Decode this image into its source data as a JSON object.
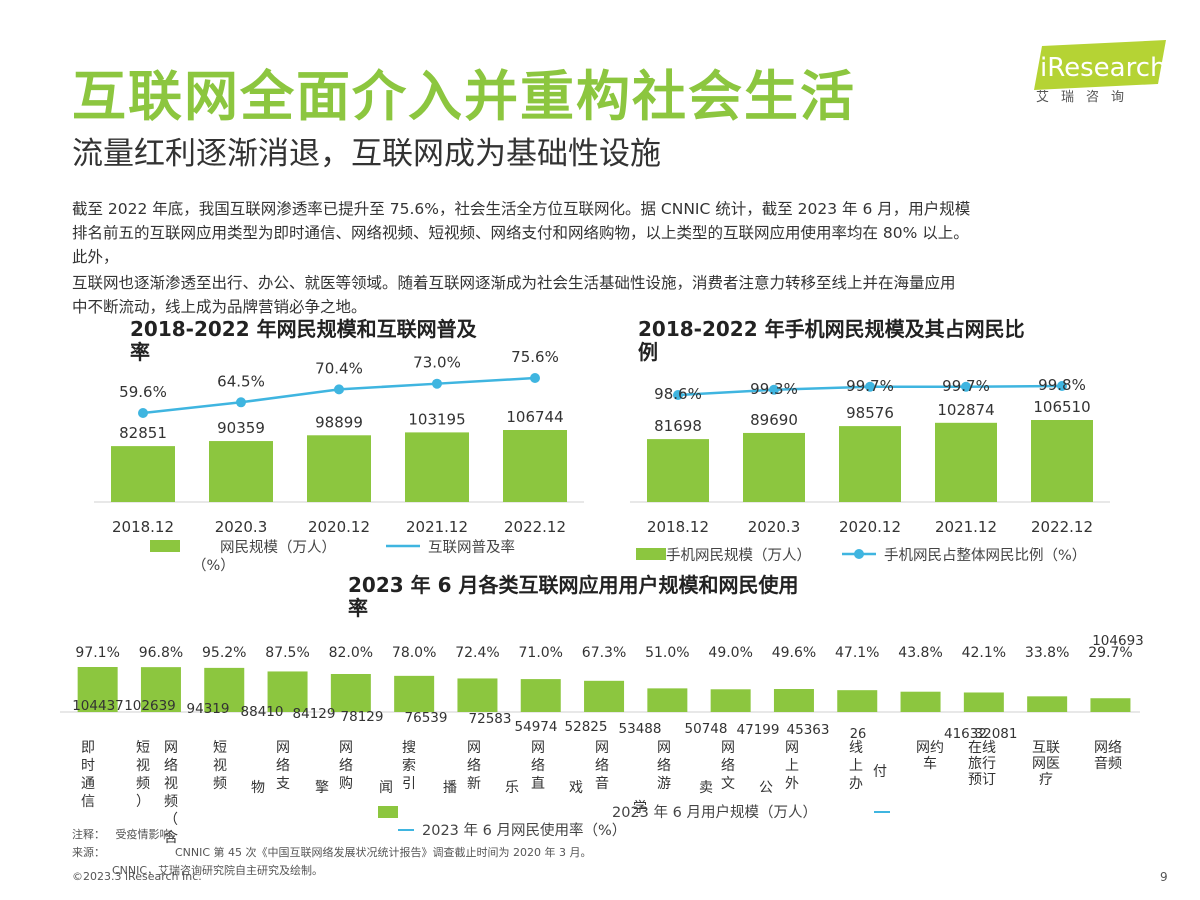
{
  "header": {
    "title": "互联网全面介入并重构社会生活",
    "subtitle": "流量红利逐渐消退，互联网成为基础性设施",
    "logo_text": "iResearch",
    "logo_sub": "艾瑞咨询"
  },
  "body_text": [
    "截至 2022 年底，我国互联网渗透率已提升至 75.6%，社会生活全方位互联网化。据 CNNIC 统计，截至 2023 年 6 月，用户规模",
    "排名前五的互联网应用类型为即时通信、网络视频、短视频、网络支付和网络购物，以上类型的互联网应用使用率均在 80% 以上。",
    "此外，",
    "互联网也逐渐渗透至出行、办公、就医等领域。随着互联网逐渐成为社会生活基础性设施，消费者注意力转移至线上并在海量应用",
    "中不断流动，线上成为品牌营销必争之地。"
  ],
  "chart_data": [
    {
      "type": "bar",
      "title": "2018-2022 年网民规模和互联网普及率",
      "title_lines": [
        "2018-2022 年网民规模和互联网普及",
        "率"
      ],
      "categories": [
        "2018.12",
        "2020.3",
        "2020.12",
        "2021.12",
        "2022.12"
      ],
      "series": [
        {
          "name": "网民规模（万人）",
          "kind": "bar",
          "values": [
            82851,
            90359,
            98899,
            103195,
            106744
          ]
        },
        {
          "name": "互联网普及率（%）",
          "kind": "line",
          "values": [
            59.6,
            64.5,
            70.4,
            73.0,
            75.6
          ],
          "labels": [
            "59.6%",
            "64.5%",
            "70.4%",
            "73.0%",
            "75.6%"
          ]
        }
      ],
      "legend": {
        "bar": "网民规模（万人）",
        "line": "互联网普及率",
        "line_suffix": "（%）"
      },
      "colors": {
        "bar": "#8cc63f",
        "line": "#3fb5e0"
      }
    },
    {
      "type": "bar",
      "title": "2018-2022 年手机网民规模及其占网民比例",
      "title_lines": [
        "2018-2022 年手机网民规模及其占网民比",
        "例"
      ],
      "categories": [
        "2018.12",
        "2020.3",
        "2020.12",
        "2021.12",
        "2022.12"
      ],
      "series": [
        {
          "name": "手机网民规模（万人）",
          "kind": "bar",
          "values": [
            81698,
            89690,
            98576,
            102874,
            106510
          ]
        },
        {
          "name": "手机网民占整体网民比例（%）",
          "kind": "line",
          "values": [
            98.6,
            99.3,
            99.7,
            99.7,
            99.8
          ],
          "labels": [
            "98.6%",
            "99.3%",
            "99.7%",
            "99.7%",
            "99.8%"
          ]
        }
      ],
      "legend": {
        "bar": "手机网民规模（万人）",
        "line": "手机网民占整体网民比例（%）"
      },
      "colors": {
        "bar": "#8cc63f",
        "line": "#3fb5e0"
      }
    },
    {
      "type": "bar",
      "title": "2023 年 6 月各类互联网应用用户规模和网民使用率",
      "title_lines": [
        "2023 年 6 月各类互联网应用用户规模和网民使用",
        "率"
      ],
      "categories": [
        "即时通信",
        "网络视频（含短视频）",
        "短视频",
        "网络支付",
        "网络购物",
        "搜索引擎",
        "网络新闻",
        "网络直播",
        "网络音乐",
        "网络游戏",
        "网络文学",
        "网上外卖",
        "线上办公",
        "网约车",
        "在线旅行预订",
        "互联网医疗",
        "网络音频"
      ],
      "category_labels": [
        "即\n时\n通\n信",
        "短\n视\n频\n）",
        "网\n络\n视\n频\n（\n含",
        "短\n视\n频",
        "网\n络\n支",
        "网\n络\n购",
        "搜\n索\n引",
        "网\n络\n新",
        "网\n络\n直",
        "网\n络\n音",
        "网\n络\n游",
        "网\n络\n文",
        "网\n上\n外",
        "线\n上\n办",
        "网约\n车",
        "在线\n旅行\n预订",
        "互联\n网医\n疗",
        "网络\n音频"
      ],
      "category_tails": [
        "物",
        "擎",
        "闻",
        "播",
        "乐",
        "戏",
        "学",
        "卖",
        "公",
        "付"
      ],
      "series": [
        {
          "name": "2023 年 6 月用户规模（万人）",
          "kind": "bar",
          "values": [
            104437,
            102639,
            94319,
            88410,
            84129,
            78129,
            76539,
            72583,
            54974,
            52825,
            53488,
            50748,
            47199,
            45363,
            41632,
            32081,
            104693
          ],
          "labels": [
            "104437",
            "102639",
            "94319",
            "88410",
            "84129",
            "78129",
            "76539",
            "72583",
            "54974",
            "52825",
            "53488",
            "50748",
            "47199",
            "45363",
            "41632",
            "32081",
            "104693"
          ]
        },
        {
          "name": "2023 年 6 月网民使用率（%）",
          "kind": "line",
          "values": [
            97.1,
            96.8,
            95.2,
            87.5,
            82.0,
            78.0,
            72.4,
            71.0,
            67.3,
            51.0,
            49.0,
            49.6,
            47.1,
            43.8,
            42.1,
            33.8,
            29.7
          ],
          "labels": [
            "97.1%",
            "96.8%",
            "95.2%",
            "87.5%",
            "82.0%",
            "78.0%",
            "72.4%",
            "71.0%",
            "67.3%",
            "51.0%",
            "49.0%",
            "49.6%",
            "47.1%",
            "43.8%",
            "42.1%",
            "33.8%",
            "29.7%"
          ]
        }
      ],
      "extra_label": "26",
      "legend": {
        "bar": "2023 年 6 月用户规模（万人）",
        "line": "2023 年 6 月网民使用率（%）"
      },
      "colors": {
        "bar": "#8cc63f",
        "line": "#3fb5e0"
      }
    }
  ],
  "footer": {
    "note_label": "注释：",
    "note_text": "受疫情影响，",
    "source_label": "来源：",
    "source_text": "CNNIC 第 45 次《中国互联网络发展状况统计报告》调查截止时间为 2020 年 3 月。",
    "source_text2": "CNNIC，艾瑞咨询研究院自主研究及绘制。",
    "copyright": "©2023.3 iResearch Inc.",
    "page_number": "9"
  }
}
